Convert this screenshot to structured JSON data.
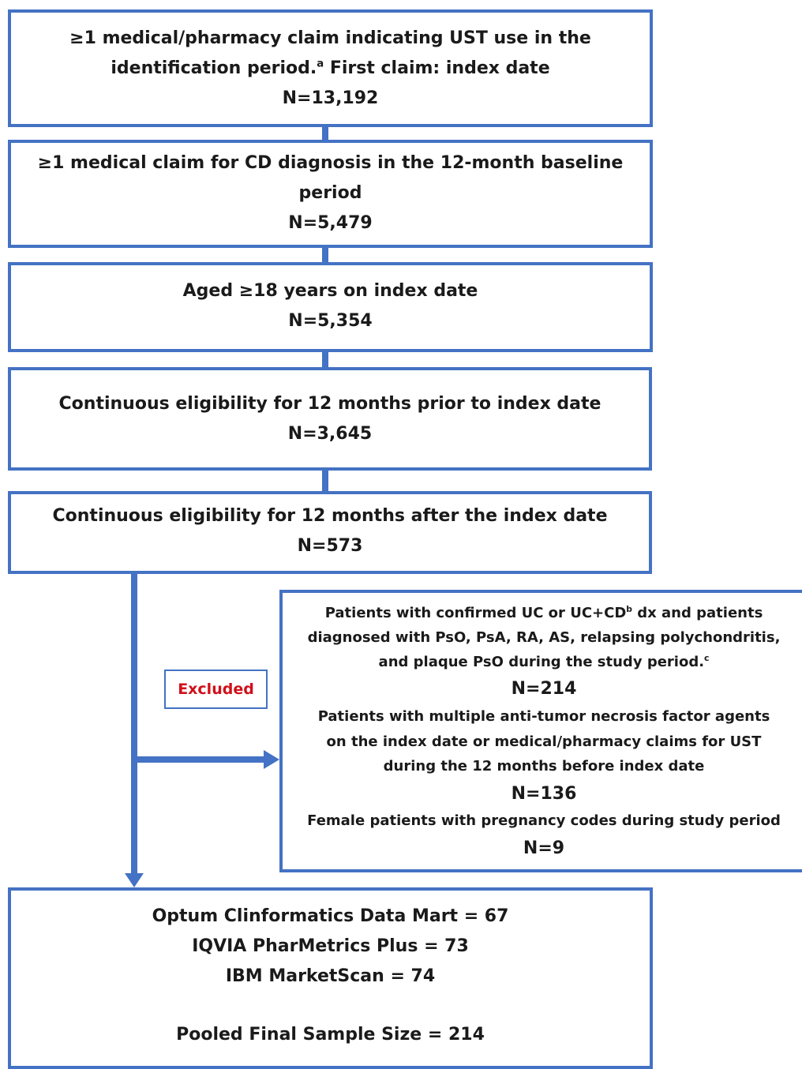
{
  "steps": [
    {
      "lines": [
        "≥1 medical/pharmacy claim indicating UST use in the",
        "identification period."
      ],
      "note": "a",
      "after_note": " First claim: index date",
      "count": "N=13,192"
    },
    {
      "lines": [
        "≥1 medical claim for CD diagnosis in the 12-month baseline",
        "period"
      ],
      "count": "N=5,479"
    },
    {
      "lines": [
        "Aged ≥18 years on index date"
      ],
      "count": "N=5,354"
    },
    {
      "lines": [
        "Continuous eligibility for 12 months prior to index date"
      ],
      "count": "N=3,645"
    },
    {
      "lines": [
        "Continuous eligibility for 12 months after the index date"
      ],
      "count": "N=573"
    }
  ],
  "excluded_label": "Excluded",
  "exclusions": [
    {
      "lines": [
        "Patients with confirmed UC or UC+CD",
        "diagnosed with PsO, PsA, RA, AS, relapsing polychondritis,",
        "and plaque PsO during the study period."
      ],
      "note_1": "b",
      "after_note_1": " dx and patients",
      "note_2": "c",
      "count": "N=214"
    },
    {
      "lines": [
        "Patients with multiple anti-tumor necrosis factor agents",
        "on the index date or medical/pharmacy claims for UST",
        "during the 12 months before index date"
      ],
      "count": "N=136"
    },
    {
      "lines": [
        "Female patients with pregnancy codes during study period"
      ],
      "count": "N=9"
    }
  ],
  "final": {
    "lines": [
      "Optum Clinformatics Data Mart = 67",
      "IQVIA PharMetrics Plus = 73",
      "IBM MarketScan = 74"
    ],
    "total": "Pooled Final Sample Size = 214"
  }
}
